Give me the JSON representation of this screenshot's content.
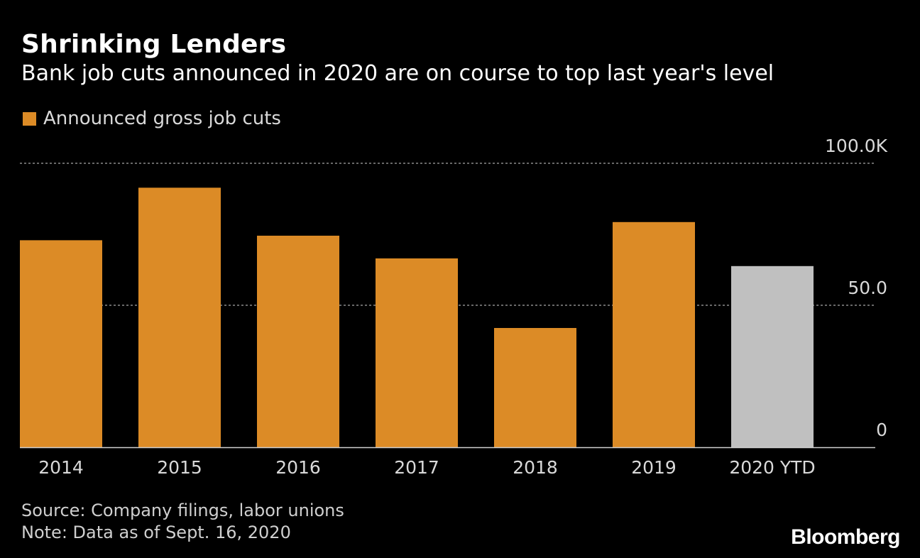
{
  "header": {
    "title": "Shrinking Lenders",
    "subtitle": "Bank job cuts announced in 2020 are on course to top last year's level"
  },
  "legend": {
    "label": "Announced gross job cuts",
    "color": "#dc8b26"
  },
  "chart_data": {
    "type": "bar",
    "categories": [
      "2014",
      "2015",
      "2016",
      "2017",
      "2018",
      "2019",
      "2020 YTD"
    ],
    "series": [
      {
        "name": "Announced gross job cuts",
        "values": [
          72.9,
          91.4,
          74.5,
          66.5,
          42.0,
          79.3,
          63.8
        ],
        "colors": [
          "#dc8b26",
          "#dc8b26",
          "#dc8b26",
          "#dc8b26",
          "#dc8b26",
          "#dc8b26",
          "#c0c0c0"
        ]
      }
    ],
    "ylim": [
      0,
      100
    ],
    "y_ticks": [
      {
        "value": 100,
        "label": "100.0K"
      },
      {
        "value": 50,
        "label": "50.0"
      },
      {
        "value": 0,
        "label": "0"
      }
    ],
    "grid": true,
    "legend_position": "top-left"
  },
  "footer": {
    "source": "Source: Company filings, labor unions",
    "note": "Note: Data as of Sept. 16, 2020"
  },
  "brand": "Bloomberg"
}
